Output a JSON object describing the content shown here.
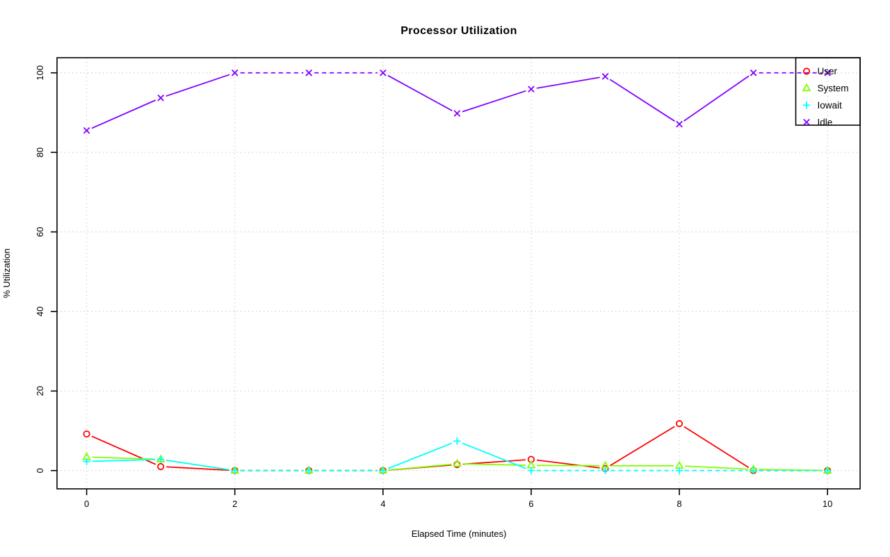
{
  "chart_data": {
    "type": "line",
    "title": "Processor Utilization",
    "xlabel": "Elapsed Time (minutes)",
    "ylabel": "% Utilization",
    "x": [
      0,
      1,
      2,
      3,
      4,
      5,
      6,
      7,
      8,
      9,
      10
    ],
    "series": [
      {
        "name": "User",
        "color": "#ff0000",
        "marker": "circle",
        "values": [
          9.2,
          1.0,
          0,
          0,
          0,
          1.5,
          2.8,
          0.5,
          11.8,
          0,
          0
        ]
      },
      {
        "name": "System",
        "color": "#80ff00",
        "marker": "triangle",
        "values": [
          3.4,
          2.8,
          0,
          0,
          0,
          1.7,
          1.3,
          1.2,
          1.2,
          0.3,
          0
        ]
      },
      {
        "name": "Iowait",
        "color": "#00ffff",
        "marker": "plus",
        "values": [
          2.3,
          2.8,
          0,
          0,
          0,
          7.4,
          0,
          0,
          0,
          0,
          0
        ]
      },
      {
        "name": "Idle",
        "color": "#8000ff",
        "marker": "x",
        "values": [
          85.5,
          93.7,
          100,
          100,
          100,
          89.8,
          95.9,
          99.1,
          87.1,
          100,
          100
        ]
      }
    ],
    "xticks": [
      0,
      2,
      4,
      6,
      8,
      10
    ],
    "yticks": [
      0,
      20,
      40,
      60,
      80,
      100
    ],
    "xlim": [
      -0.4,
      10.44
    ],
    "ylim": [
      -4.6,
      103.8
    ],
    "grid": "dotted",
    "legend": {
      "position": "top-right",
      "entries": [
        "User",
        "System",
        "Iowait",
        "Idle"
      ]
    }
  },
  "colors": {
    "background": "#ffffff",
    "axis": "#000000",
    "grid": "#cfcfcf",
    "user": "#ff0000",
    "system": "#80ff00",
    "iowait": "#00ffff",
    "idle": "#8000ff"
  }
}
